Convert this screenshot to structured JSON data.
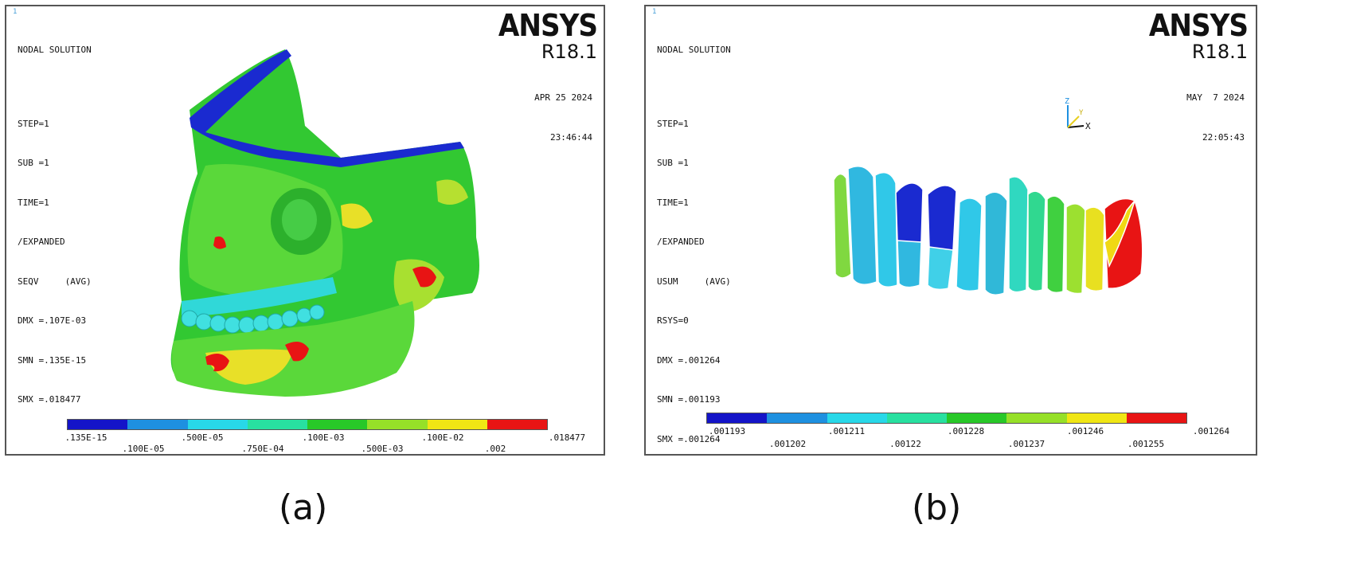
{
  "panels": [
    {
      "id": "a",
      "title": "NODAL SOLUTION",
      "corner_mark": "1",
      "info_lines": [
        "STEP=1",
        "SUB =1",
        "TIME=1",
        "/EXPANDED",
        "SEQV     (AVG)",
        "DMX =.107E-03",
        "SMN =.135E-15",
        "SMX =.018477"
      ],
      "logo": "ANSYS",
      "version": "R18.1",
      "date": "APR 25 2024",
      "time": "23:46:44",
      "colors": [
        "#1414c8",
        "#1e90e0",
        "#28d8e8",
        "#28e0a0",
        "#28c828",
        "#96e028",
        "#f0e614",
        "#e81414"
      ],
      "ticks_lower": [
        ".135E-15",
        ".500E-05",
        ".100E-03",
        ".100E-02",
        ".018477"
      ],
      "ticks_upper": [
        ".100E-05",
        ".750E-04",
        ".500E-03",
        ".002"
      ],
      "caption": "(a)"
    },
    {
      "id": "b",
      "title": "NODAL SOLUTION",
      "corner_mark": "1",
      "info_lines": [
        "STEP=1",
        "SUB =1",
        "TIME=1",
        "/EXPANDED",
        "USUM     (AVG)",
        "RSYS=0",
        "DMX =.001264",
        "SMN =.001193",
        "SMX =.001264"
      ],
      "logo": "ANSYS",
      "version": "R18.1",
      "date": "MAY  7 2024",
      "time": "22:05:43",
      "triad": {
        "z": "Z",
        "y": "Y",
        "x": "X"
      },
      "colors": [
        "#1414c8",
        "#1e90e0",
        "#28d8e8",
        "#28e0a0",
        "#28c828",
        "#96e028",
        "#f0e614",
        "#e81414"
      ],
      "ticks_lower": [
        ".001193",
        ".001211",
        ".001228",
        ".001246",
        ".001264"
      ],
      "ticks_upper": [
        ".001202",
        ".00122",
        ".001237",
        ".001255"
      ],
      "caption": "(b)"
    }
  ]
}
